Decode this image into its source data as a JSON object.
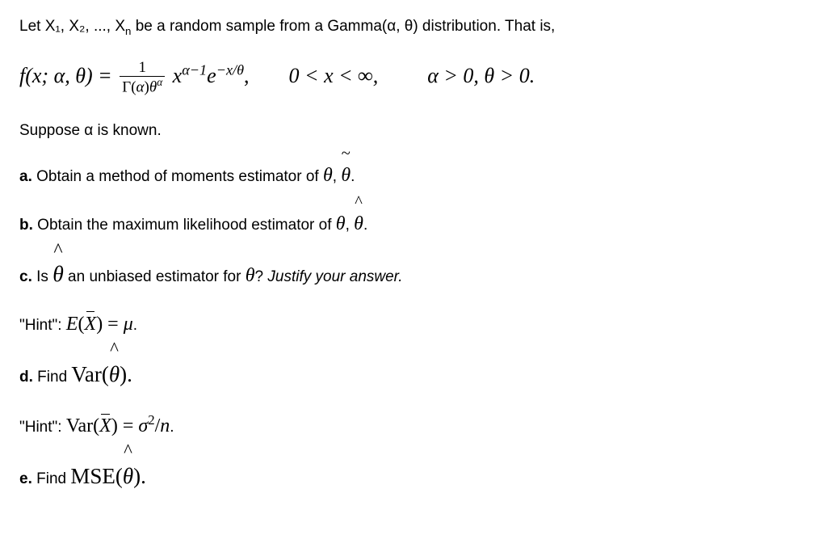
{
  "colors": {
    "text": "#000000",
    "background": "#ffffff"
  },
  "typography": {
    "body_font": "Verdana",
    "body_size_pt": 14,
    "math_font": "Times New Roman",
    "math_size_pt": 18
  },
  "intro": {
    "prefix": "Let ",
    "sample": "X₁, X₂, ..., X",
    "sample_sub": "n",
    "mid": " be a random sample from a Gamma(α, θ) distribution. That is,"
  },
  "pdf": {
    "lhs_f": "f",
    "lhs_args": "(x; α, θ) = ",
    "frac_num": "1",
    "frac_den_gamma": "Γ(",
    "frac_den_alpha": "α",
    "frac_den_close": ")",
    "frac_den_theta": "θ",
    "frac_den_exp": "α",
    "after_frac": " x",
    "exp1": "α−1",
    "e": "e",
    "exp2": "−x/θ",
    "comma": ",",
    "range": "0 < x < ∞,",
    "params": "α > 0,  θ > 0."
  },
  "suppose": "Suppose α is known.",
  "parts": {
    "a": {
      "label": "a.",
      "text_before": " Obtain a method of moments estimator of ",
      "theta": "θ",
      "comma": ", ",
      "est_mark": "~",
      "est_base": "θ",
      "period": "."
    },
    "b": {
      "label": "b.",
      "text_before": " Obtain the maximum likelihood estimator of ",
      "theta": "θ",
      "comma": ", ",
      "est_mark": "^",
      "est_base": "θ",
      "period": "."
    },
    "c": {
      "label": "c.",
      "text_before": " Is ",
      "est_mark": "^",
      "est_base": "θ",
      "text_after": " an unbiased estimator for ",
      "theta2": "θ",
      "q": "? ",
      "justify": "Justify your answer."
    },
    "d": {
      "label": "d.",
      "text_before": " Find ",
      "func": "Var(",
      "est_mark": "^",
      "est_base": "θ",
      "close": ")."
    },
    "e": {
      "label": "e.",
      "text_before": " Find ",
      "func": "MSE(",
      "est_mark": "^",
      "est_base": "θ",
      "close": ")."
    }
  },
  "hints": {
    "c": {
      "label": "\"Hint\": ",
      "lhs_E": "E",
      "lhs_open": "(",
      "xbar": "X",
      "lhs_close": ") = ",
      "rhs": "μ",
      "period": "."
    },
    "d": {
      "label": "\"Hint\": ",
      "lhs": "Var(",
      "xbar": "X",
      "lhs_close": ") = ",
      "sigma": "σ",
      "exp": "2",
      "slash": "/",
      "n": "n",
      "period": "."
    }
  }
}
